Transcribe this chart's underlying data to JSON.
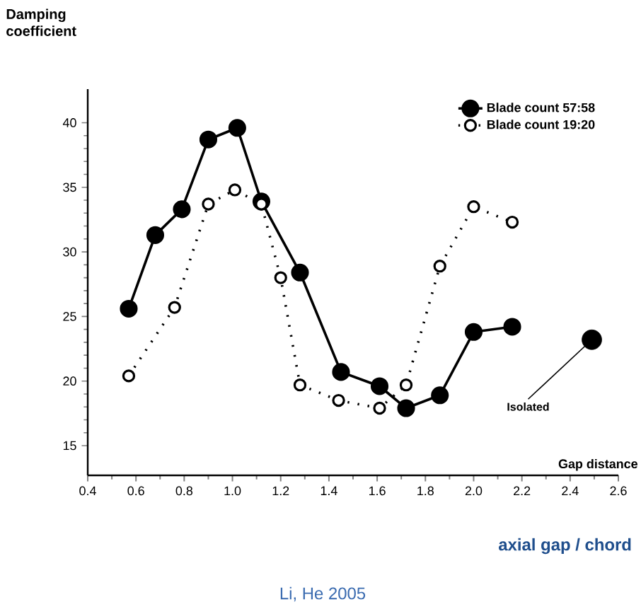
{
  "chart_data": {
    "type": "line",
    "ylabel": "Damping coefficient",
    "xlabel": "Gap distance",
    "xlim": [
      0.4,
      2.6
    ],
    "ylim": [
      12.7,
      42.6
    ],
    "xticks": [
      0.4,
      0.6,
      0.8,
      {
        "value": 1.0,
        "label": "1.0"
      },
      1.2,
      1.4,
      1.6,
      1.8,
      {
        "value": 2.0,
        "label": "2.0"
      },
      2.2,
      2.4,
      2.6
    ],
    "yticks": [
      15,
      20,
      25,
      30,
      35,
      40
    ],
    "legend": "top right",
    "grid": false,
    "marker": "circle",
    "series": [
      {
        "name": "Blade count 57:58",
        "color": "#000000",
        "line_style": "solid",
        "x": [
          0.57,
          0.68,
          0.79,
          0.9,
          1.02,
          1.12,
          1.28,
          1.45,
          1.61,
          1.72,
          1.86,
          2.0,
          2.16
        ],
        "values": [
          25.6,
          31.3,
          33.3,
          38.7,
          39.6,
          33.9,
          28.4,
          20.7,
          19.6,
          17.9,
          18.9,
          23.8,
          24.2
        ]
      },
      {
        "name": "Blade count 19:20",
        "color": "#000000",
        "line_style": "dotted",
        "x": [
          0.57,
          0.76,
          0.9,
          1.01,
          1.12,
          1.2,
          1.28,
          1.44,
          1.61,
          1.72,
          1.86,
          2.0,
          2.16
        ],
        "values": [
          20.4,
          25.7,
          33.7,
          34.8,
          33.7,
          28.0,
          19.7,
          18.5,
          17.9,
          19.7,
          28.9,
          33.5,
          32.3
        ]
      },
      {
        "type": "scatter",
        "color": "#000000",
        "x": [
          2.49
        ],
        "values": [
          23.2
        ]
      }
    ],
    "annotations": [
      {
        "text": "Isolated",
        "x": 2.49,
        "y": 23.2
      },
      "axial gap / chord",
      "Li, He 2005"
    ]
  }
}
